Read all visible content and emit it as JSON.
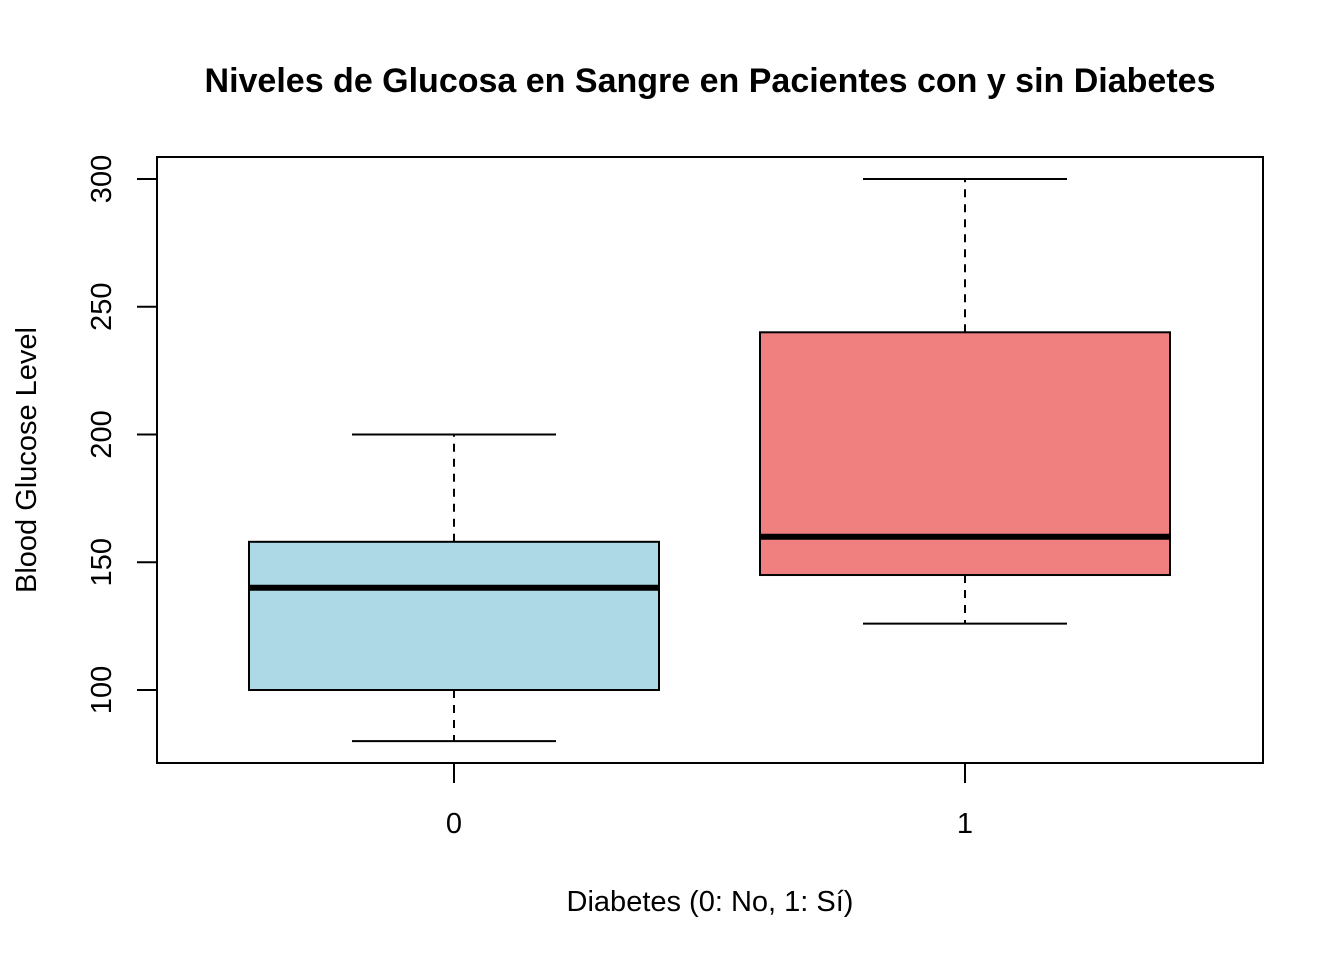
{
  "chart_data": {
    "type": "boxplot",
    "title": "Niveles de Glucosa en Sangre en Pacientes con y sin Diabetes",
    "xlabel": "Diabetes (0: No, 1: Sí)",
    "ylabel": "Blood Glucose Level",
    "categories": [
      "0",
      "1"
    ],
    "y_ticks": [
      100,
      150,
      200,
      250,
      300
    ],
    "y_tick_labels": [
      "100",
      "150",
      "200",
      "250",
      "300"
    ],
    "ylim": [
      71,
      308
    ],
    "grid": false,
    "boxes": [
      {
        "category": "0",
        "whisker_low": 80,
        "q1": 100,
        "median": 140,
        "q3": 158,
        "whisker_high": 200,
        "fill": "#ADD8E6"
      },
      {
        "category": "1",
        "whisker_low": 126,
        "q1": 145,
        "median": 160,
        "q3": 240,
        "whisker_high": 300,
        "fill": "#F08080"
      }
    ]
  }
}
